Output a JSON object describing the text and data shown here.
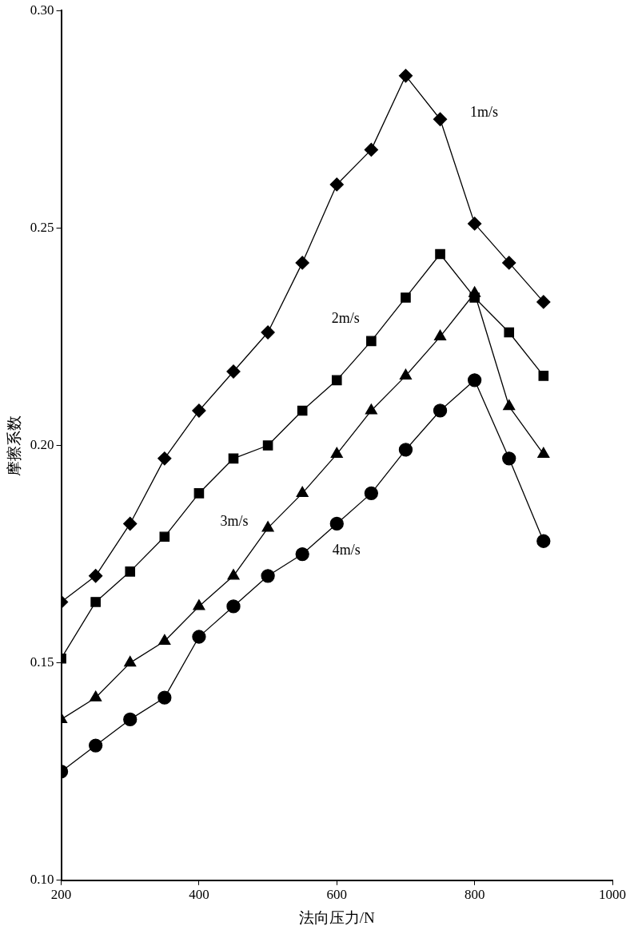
{
  "chart_data": {
    "type": "line",
    "xlabel": "法向压力/N",
    "ylabel": "摩擦系数",
    "x": [
      200,
      250,
      300,
      350,
      400,
      450,
      500,
      550,
      600,
      650,
      700,
      750,
      800,
      850,
      900
    ],
    "xlim": [
      200,
      1000
    ],
    "xticks": [
      200,
      400,
      600,
      800,
      1000
    ],
    "ylim": [
      0.1,
      0.3
    ],
    "yticks": [
      {
        "value": 0.1,
        "label": "0.10"
      },
      {
        "value": 0.15,
        "label": "0.15"
      },
      {
        "value": 0.2,
        "label": "0.20"
      },
      {
        "value": 0.25,
        "label": "0.25"
      },
      {
        "value": 0.3,
        "label": "0.30"
      }
    ],
    "grid": false,
    "legend": false,
    "line_style": "solid",
    "series": [
      {
        "name": "1m/s",
        "color": "#000000",
        "marker": "diamond",
        "values": [
          0.164,
          0.17,
          0.182,
          0.197,
          0.208,
          0.217,
          0.226,
          0.242,
          0.26,
          0.268,
          0.285,
          0.275,
          0.251,
          0.242,
          0.233
        ]
      },
      {
        "name": "2m/s",
        "color": "#000000",
        "marker": "square",
        "values": [
          0.151,
          0.164,
          0.171,
          0.179,
          0.189,
          0.197,
          0.2,
          0.208,
          0.215,
          0.224,
          0.234,
          0.244,
          0.234,
          0.226,
          0.216
        ]
      },
      {
        "name": "3m/s",
        "color": "#000000",
        "marker": "triangle",
        "values": [
          0.137,
          0.142,
          0.15,
          0.155,
          0.163,
          0.17,
          0.181,
          0.189,
          0.198,
          0.208,
          0.216,
          0.225,
          0.235,
          0.209,
          0.198
        ]
      },
      {
        "name": "4m/s",
        "color": "#000000",
        "marker": "circle",
        "values": [
          0.125,
          0.131,
          0.137,
          0.142,
          0.156,
          0.163,
          0.17,
          0.175,
          0.182,
          0.189,
          0.199,
          0.208,
          0.215,
          0.197,
          0.178
        ]
      }
    ]
  }
}
